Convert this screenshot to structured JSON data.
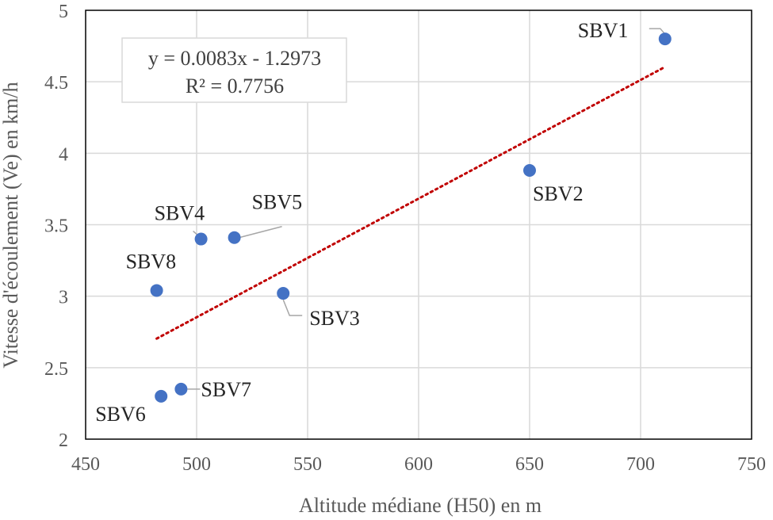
{
  "chart_data": {
    "type": "scatter",
    "title": "",
    "xlabel": "Altitude médiane (H50) en m",
    "ylabel": "Vitesse d'écoulement (Ve) en km/h",
    "xlim": [
      450,
      750
    ],
    "ylim": [
      2,
      5
    ],
    "x_ticks": [
      450,
      500,
      550,
      600,
      650,
      700,
      750
    ],
    "y_ticks": [
      2,
      2.5,
      3,
      3.5,
      4,
      4.5,
      5
    ],
    "x_tick_labels": [
      "450",
      "500",
      "550",
      "600",
      "650",
      "700",
      "750"
    ],
    "y_tick_labels": [
      "2",
      "2.5",
      "3",
      "3.5",
      "4",
      "4.5",
      "5"
    ],
    "grid": true,
    "marker_color": "#4472c4",
    "trendline_color": "#c00000",
    "points": [
      {
        "label": "SBV1",
        "x": 711,
        "y": 4.8
      },
      {
        "label": "SBV2",
        "x": 650,
        "y": 3.88
      },
      {
        "label": "SBV3",
        "x": 539,
        "y": 3.02
      },
      {
        "label": "SBV4",
        "x": 502,
        "y": 3.4
      },
      {
        "label": "SBV5",
        "x": 517,
        "y": 3.41
      },
      {
        "label": "SBV6",
        "x": 484,
        "y": 2.3
      },
      {
        "label": "SBV7",
        "x": 493,
        "y": 2.35
      },
      {
        "label": "SBV8",
        "x": 482,
        "y": 3.04
      }
    ],
    "trendline": {
      "type": "linear",
      "slope": 0.0083,
      "intercept": -1.2973,
      "x_range": [
        482,
        711
      ],
      "equation": "y = 0.0083x - 1.2973",
      "r_squared": "R² = 0.7756"
    }
  }
}
